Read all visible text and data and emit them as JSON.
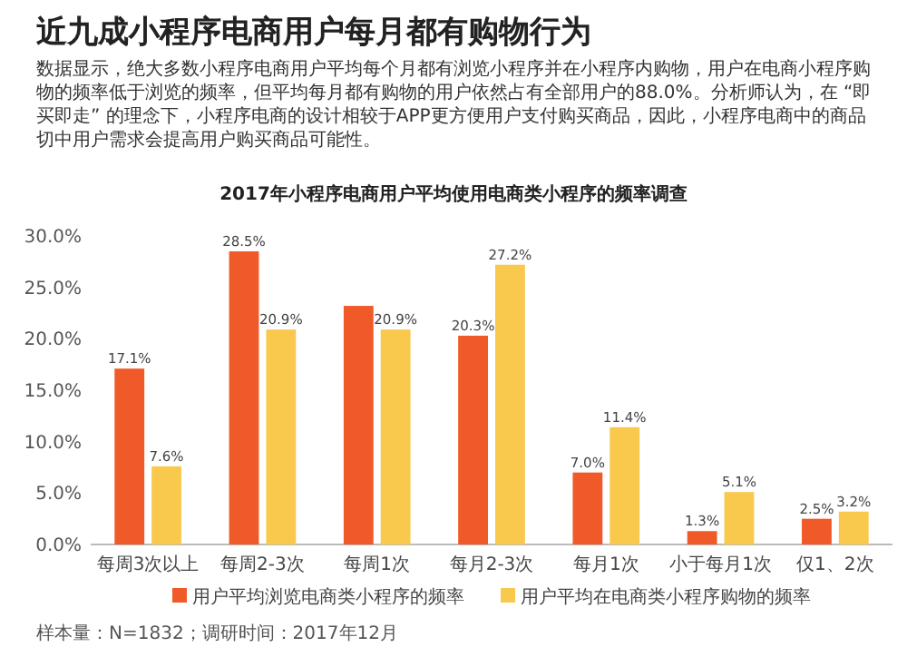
{
  "chart_data": {
    "type": "bar",
    "title": "近九成小程序电商用户每月都有购物行为",
    "subtitle": "2017年小程序电商用户平均使用电商类小程序的频率调查",
    "annotations": [
      "数据显示，绝大多数小程序电商用户平均每个月都有浏览小程序并在小程序内购物，用户在电商小程序购物的频率低于浏览的频率，但平均每月都有购物的用户依然占有全部用户的88.0%。分析师认为，在 “即买即走” 的理念下，小程序电商的设计相较于APP更方便用户支付购买商品，因此，小程序电商中的商品切中用户需求会提高用户购买商品可能性。",
      "样本量：N=1832；调研时间：2017年12月"
    ],
    "categories": [
      "每周3次以上",
      "每周2-3次",
      "每周1次",
      "每月2-3次",
      "每月1次",
      "小于每月1次",
      "仅1、2次"
    ],
    "series": [
      {
        "name": "用户平均浏览电商类小程序的频率",
        "color": "#f05a28",
        "values": [
          17.1,
          28.5,
          23.2,
          20.3,
          7.0,
          1.3,
          2.5
        ],
        "value_labels": [
          "17.1%",
          "28.5%",
          null,
          "20.3%",
          "7.0%",
          "1.3%",
          "2.5%"
        ]
      },
      {
        "name": "用户平均在电商类小程序购物的频率",
        "color": "#f9c94e",
        "values": [
          7.6,
          20.9,
          20.9,
          27.2,
          11.4,
          5.1,
          3.2
        ],
        "value_labels": [
          "7.6%",
          "20.9%",
          "20.9%",
          "27.2%",
          "11.4%",
          "5.1%",
          "3.2%"
        ]
      }
    ],
    "ylim": [
      0,
      30
    ],
    "yticks": [
      {
        "value": 0,
        "label": "0.0%"
      },
      {
        "value": 5,
        "label": "5.0%"
      },
      {
        "value": 10,
        "label": "10.0%"
      },
      {
        "value": 15,
        "label": "15.0%"
      },
      {
        "value": 20,
        "label": "20.0%"
      },
      {
        "value": 25,
        "label": "25.0%"
      },
      {
        "value": 30,
        "label": "30.0%"
      }
    ],
    "legend": "bottom"
  }
}
